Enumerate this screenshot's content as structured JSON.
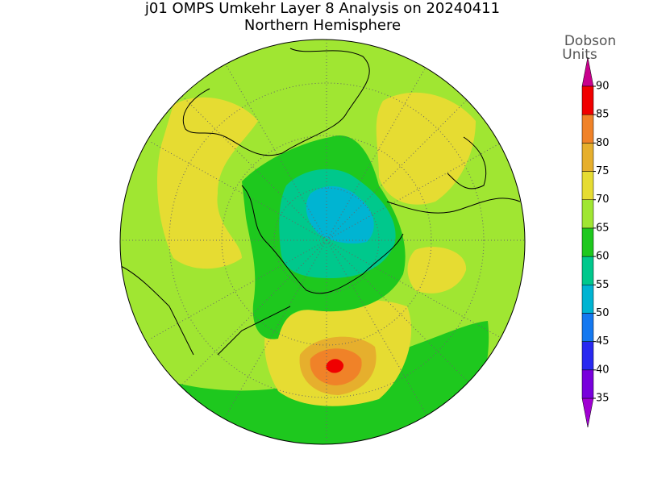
{
  "header": {
    "title": "j01 OMPS Umkehr Layer 8 Analysis on 20240411",
    "subtitle": "Northern Hemisphere"
  },
  "colorbar": {
    "label": [
      "Dobson",
      "Units"
    ],
    "ticks": [
      35,
      40,
      45,
      50,
      55,
      60,
      65,
      70,
      75,
      80,
      85,
      90
    ],
    "colors": [
      "#a000d2",
      "#7800dc",
      "#2828f0",
      "#1478f0",
      "#00b4d2",
      "#00c88c",
      "#1ec81e",
      "#a0e632",
      "#e6dc32",
      "#e6af2d",
      "#f08228",
      "#f00000",
      "#c8008c"
    ]
  }
}
